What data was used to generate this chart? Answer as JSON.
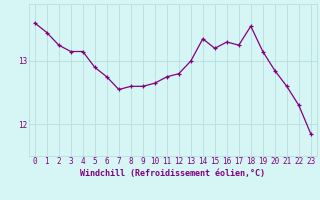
{
  "x": [
    0,
    1,
    2,
    3,
    4,
    5,
    6,
    7,
    8,
    9,
    10,
    11,
    12,
    13,
    14,
    15,
    16,
    17,
    18,
    19,
    20,
    21,
    22,
    23
  ],
  "y": [
    13.6,
    13.45,
    13.25,
    13.15,
    13.15,
    12.9,
    12.75,
    12.55,
    12.6,
    12.6,
    12.65,
    12.75,
    12.8,
    13.0,
    13.35,
    13.2,
    13.3,
    13.25,
    13.55,
    13.15,
    12.85,
    12.6,
    12.3,
    11.85
  ],
  "line_color": "#800080",
  "marker": "+",
  "bg_color": "#d6f5f5",
  "grid_color": "#b8dede",
  "axis_color": "#800080",
  "xlabel": "Windchill (Refroidissement éolien,°C)",
  "xlabel_fontsize": 6.0,
  "tick_fontsize": 5.5,
  "yticks": [
    12,
    13
  ],
  "ylim": [
    11.5,
    13.9
  ],
  "xlim": [
    -0.5,
    23.5
  ]
}
